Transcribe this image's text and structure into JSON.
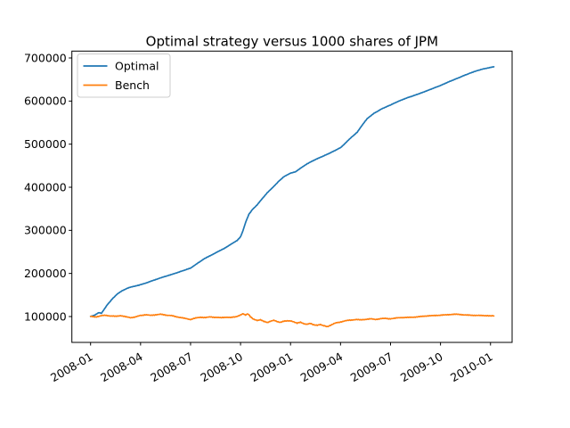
{
  "title": "Optimal strategy versus 1000 shares of JPM",
  "colors": {
    "optimal": "#1f77b4",
    "bench": "#ff7f0e",
    "background": "#ffffff",
    "text": "#000000",
    "spine": "#000000",
    "legend_border": "#cccccc"
  },
  "chart_data": {
    "type": "line",
    "title": "Optimal strategy versus 1000 shares of JPM",
    "xlabel": "",
    "ylabel": "",
    "grid": false,
    "legend_position": "upper left",
    "x_axis": {
      "tick_labels": [
        "2008-01",
        "2008-04",
        "2008-07",
        "2008-10",
        "2009-01",
        "2009-04",
        "2009-07",
        "2009-10",
        "2010-01"
      ],
      "tick_months": [
        0,
        3,
        6,
        9,
        12,
        15,
        18,
        21,
        24
      ],
      "label_rotation_deg": -30
    },
    "y_axis": {
      "tick_labels": [
        "100000",
        "200000",
        "300000",
        "400000",
        "500000",
        "600000",
        "700000"
      ],
      "tick_values": [
        100000,
        200000,
        300000,
        400000,
        500000,
        600000,
        700000
      ],
      "ylim": [
        40000,
        716000
      ]
    },
    "legend": {
      "entries": [
        {
          "label": "Optimal",
          "color": "#1f77b4"
        },
        {
          "label": "Bench",
          "color": "#ff7f0e"
        }
      ]
    },
    "series": [
      {
        "name": "Optimal",
        "color": "#1f77b4",
        "points_months_value": [
          [
            0,
            100000
          ],
          [
            0.25,
            103500
          ],
          [
            0.5,
            109000
          ],
          [
            0.65,
            107500
          ],
          [
            0.8,
            116000
          ],
          [
            1,
            127000
          ],
          [
            1.3,
            141000
          ],
          [
            1.6,
            152000
          ],
          [
            1.9,
            160000
          ],
          [
            2.2,
            165500
          ],
          [
            2.5,
            169000
          ],
          [
            2.8,
            172000
          ],
          [
            3,
            174000
          ],
          [
            3.4,
            179000
          ],
          [
            3.8,
            184500
          ],
          [
            4.2,
            189500
          ],
          [
            4.6,
            194500
          ],
          [
            5,
            199500
          ],
          [
            5.5,
            206000
          ],
          [
            6,
            212500
          ],
          [
            6.4,
            223000
          ],
          [
            6.8,
            233500
          ],
          [
            7.2,
            241500
          ],
          [
            7.6,
            250000
          ],
          [
            8,
            257500
          ],
          [
            8.4,
            267000
          ],
          [
            8.8,
            276500
          ],
          [
            9,
            285000
          ],
          [
            9.15,
            300000
          ],
          [
            9.3,
            318000
          ],
          [
            9.5,
            337000
          ],
          [
            9.7,
            348000
          ],
          [
            10,
            359000
          ],
          [
            10.3,
            373500
          ],
          [
            10.6,
            387000
          ],
          [
            11,
            402000
          ],
          [
            11.3,
            414500
          ],
          [
            11.6,
            424500
          ],
          [
            12,
            432500
          ],
          [
            12.3,
            436000
          ],
          [
            12.6,
            444000
          ],
          [
            13,
            454500
          ],
          [
            13.5,
            464500
          ],
          [
            14,
            473000
          ],
          [
            14.5,
            482000
          ],
          [
            15,
            492000
          ],
          [
            15.3,
            502500
          ],
          [
            15.6,
            514000
          ],
          [
            16,
            528000
          ],
          [
            16.3,
            544000
          ],
          [
            16.6,
            559500
          ],
          [
            17,
            571500
          ],
          [
            17.5,
            582500
          ],
          [
            18,
            591000
          ],
          [
            18.5,
            600000
          ],
          [
            19,
            607500
          ],
          [
            19.5,
            614000
          ],
          [
            20,
            621000
          ],
          [
            20.5,
            628500
          ],
          [
            21,
            636000
          ],
          [
            21.5,
            644500
          ],
          [
            22,
            652500
          ],
          [
            22.5,
            660500
          ],
          [
            23,
            668000
          ],
          [
            23.5,
            674000
          ],
          [
            24,
            678000
          ],
          [
            24.2,
            679500
          ]
        ]
      },
      {
        "name": "Bench",
        "color": "#ff7f0e",
        "points_months_value": [
          [
            0,
            100000
          ],
          [
            0.3,
            99000
          ],
          [
            0.6,
            101500
          ],
          [
            0.9,
            103000
          ],
          [
            1.2,
            101500
          ],
          [
            1.5,
            100500
          ],
          [
            1.8,
            102500
          ],
          [
            2.1,
            99500
          ],
          [
            2.4,
            97500
          ],
          [
            2.7,
            99000
          ],
          [
            3,
            102500
          ],
          [
            3.3,
            104000
          ],
          [
            3.6,
            102500
          ],
          [
            3.9,
            104000
          ],
          [
            4.2,
            105000
          ],
          [
            4.5,
            103500
          ],
          [
            4.8,
            102500
          ],
          [
            5.1,
            100000
          ],
          [
            5.4,
            98000
          ],
          [
            5.7,
            95500
          ],
          [
            6,
            93500
          ],
          [
            6.3,
            96500
          ],
          [
            6.6,
            98500
          ],
          [
            6.9,
            97500
          ],
          [
            7.2,
            99000
          ],
          [
            7.5,
            98000
          ],
          [
            7.8,
            97000
          ],
          [
            8.1,
            98500
          ],
          [
            8.4,
            97500
          ],
          [
            8.7,
            99500
          ],
          [
            9,
            103500
          ],
          [
            9.15,
            107000
          ],
          [
            9.3,
            103500
          ],
          [
            9.45,
            106000
          ],
          [
            9.6,
            99500
          ],
          [
            9.8,
            93500
          ],
          [
            10,
            90500
          ],
          [
            10.2,
            93000
          ],
          [
            10.4,
            88500
          ],
          [
            10.6,
            86000
          ],
          [
            10.8,
            89500
          ],
          [
            11,
            91000
          ],
          [
            11.2,
            88500
          ],
          [
            11.4,
            86500
          ],
          [
            11.6,
            89000
          ],
          [
            11.8,
            90500
          ],
          [
            12,
            89500
          ],
          [
            12.2,
            87500
          ],
          [
            12.4,
            85000
          ],
          [
            12.6,
            86500
          ],
          [
            12.8,
            83500
          ],
          [
            13,
            82000
          ],
          [
            13.2,
            84000
          ],
          [
            13.4,
            81000
          ],
          [
            13.6,
            79500
          ],
          [
            13.8,
            81500
          ],
          [
            14,
            79000
          ],
          [
            14.2,
            76000
          ],
          [
            14.4,
            80000
          ],
          [
            14.6,
            83500
          ],
          [
            14.8,
            86000
          ],
          [
            15,
            87500
          ],
          [
            15.3,
            90000
          ],
          [
            15.6,
            91500
          ],
          [
            15.9,
            93000
          ],
          [
            16.2,
            92000
          ],
          [
            16.5,
            93500
          ],
          [
            16.8,
            94500
          ],
          [
            17.1,
            93500
          ],
          [
            17.4,
            95000
          ],
          [
            17.7,
            96000
          ],
          [
            18,
            95000
          ],
          [
            18.4,
            96500
          ],
          [
            18.8,
            97500
          ],
          [
            19.2,
            98500
          ],
          [
            19.6,
            99500
          ],
          [
            20,
            100500
          ],
          [
            20.4,
            101500
          ],
          [
            20.8,
            103000
          ],
          [
            21.2,
            104000
          ],
          [
            21.6,
            104500
          ],
          [
            22,
            105000
          ],
          [
            22.4,
            104000
          ],
          [
            22.8,
            103500
          ],
          [
            23.2,
            102500
          ],
          [
            23.6,
            102000
          ],
          [
            24,
            101500
          ],
          [
            24.2,
            101500
          ]
        ]
      }
    ]
  }
}
